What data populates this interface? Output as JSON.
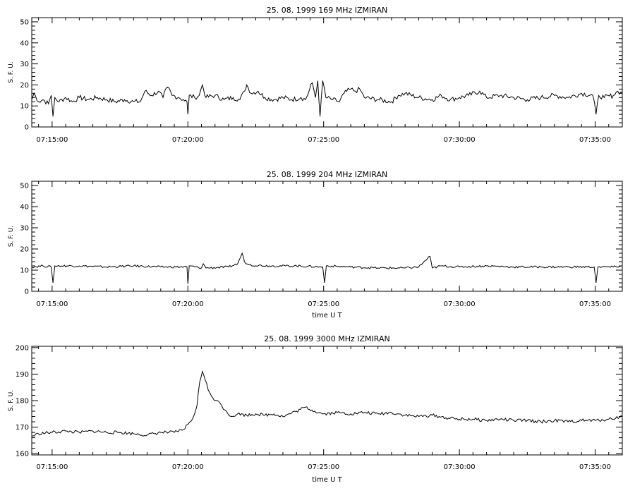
{
  "chart_data": [
    {
      "type": "line",
      "title": "25.  08.  1999    169 MHz    IZMIRAN",
      "ylabel": "S. F. U.",
      "xlabel": "",
      "x_ticks": [
        "07:15:00",
        "07:20:00",
        "07:25:00",
        "07:30:00",
        "07:35:00"
      ],
      "xlim": [
        "07:14:15",
        "07:36:00"
      ],
      "y_ticks": [
        "0",
        "10",
        "20",
        "30",
        "40",
        "50"
      ],
      "ylim": [
        0,
        52
      ],
      "series": [
        {
          "points": [
            [
              "07:14:15",
              13
            ],
            [
              "07:14:20",
              16
            ],
            [
              "07:14:30",
              12
            ],
            [
              "07:14:40",
              13
            ],
            [
              "07:14:52",
              11
            ],
            [
              "07:14:58",
              15
            ],
            [
              "07:15:02",
              5
            ],
            [
              "07:15:06",
              14
            ],
            [
              "07:15:15",
              12
            ],
            [
              "07:15:30",
              14
            ],
            [
              "07:15:45",
              12
            ],
            [
              "07:16:00",
              14
            ],
            [
              "07:16:20",
              13
            ],
            [
              "07:16:40",
              14
            ],
            [
              "07:17:00",
              13
            ],
            [
              "07:17:20",
              12
            ],
            [
              "07:17:40",
              13
            ],
            [
              "07:18:00",
              12
            ],
            [
              "07:18:15",
              12
            ],
            [
              "07:18:25",
              17
            ],
            [
              "07:18:40",
              15
            ],
            [
              "07:18:55",
              17
            ],
            [
              "07:19:05",
              14
            ],
            [
              "07:19:15",
              19
            ],
            [
              "07:19:25",
              15
            ],
            [
              "07:19:40",
              14
            ],
            [
              "07:19:50",
              13
            ],
            [
              "07:19:58",
              12
            ],
            [
              "07:20:00",
              6
            ],
            [
              "07:20:03",
              15
            ],
            [
              "07:20:15",
              14
            ],
            [
              "07:20:25",
              15
            ],
            [
              "07:20:32",
              20
            ],
            [
              "07:20:40",
              14
            ],
            [
              "07:21:00",
              15
            ],
            [
              "07:21:20",
              13
            ],
            [
              "07:21:40",
              14
            ],
            [
              "07:21:55",
              13
            ],
            [
              "07:22:05",
              17
            ],
            [
              "07:22:10",
              20
            ],
            [
              "07:22:20",
              16
            ],
            [
              "07:22:35",
              17
            ],
            [
              "07:22:50",
              14
            ],
            [
              "07:23:10",
              13
            ],
            [
              "07:23:30",
              14
            ],
            [
              "07:23:50",
              13
            ],
            [
              "07:24:10",
              14
            ],
            [
              "07:24:20",
              13
            ],
            [
              "07:24:35",
              21
            ],
            [
              "07:24:42",
              14
            ],
            [
              "07:24:47",
              22
            ],
            [
              "07:24:52",
              5
            ],
            [
              "07:24:58",
              22
            ],
            [
              "07:25:05",
              14
            ],
            [
              "07:25:20",
              13
            ],
            [
              "07:25:35",
              12
            ],
            [
              "07:25:45",
              16
            ],
            [
              "07:26:00",
              18
            ],
            [
              "07:26:10",
              17
            ],
            [
              "07:26:20",
              18
            ],
            [
              "07:26:30",
              14
            ],
            [
              "07:27:00",
              13
            ],
            [
              "07:27:30",
              12
            ],
            [
              "07:27:45",
              15
            ],
            [
              "07:28:00",
              16
            ],
            [
              "07:28:30",
              14
            ],
            [
              "07:29:00",
              13
            ],
            [
              "07:29:20",
              15
            ],
            [
              "07:29:40",
              13
            ],
            [
              "07:30:00",
              14
            ],
            [
              "07:30:20",
              15
            ],
            [
              "07:30:45",
              17
            ],
            [
              "07:31:00",
              14
            ],
            [
              "07:31:30",
              15
            ],
            [
              "07:32:00",
              14
            ],
            [
              "07:32:30",
              13
            ],
            [
              "07:33:00",
              14
            ],
            [
              "07:33:30",
              15
            ],
            [
              "07:34:00",
              14
            ],
            [
              "07:34:30",
              16
            ],
            [
              "07:34:55",
              15
            ],
            [
              "07:35:02",
              6
            ],
            [
              "07:35:08",
              15
            ],
            [
              "07:35:20",
              14
            ],
            [
              "07:35:40",
              15
            ],
            [
              "07:35:50",
              17
            ],
            [
              "07:36:00",
              16
            ]
          ]
        }
      ]
    },
    {
      "type": "line",
      "title": "25.  08.  1999    204 MHz    IZMIRAN",
      "ylabel": "S. F. U.",
      "xlabel": "time   U T",
      "x_ticks": [
        "07:15:00",
        "07:20:00",
        "07:25:00",
        "07:30:00",
        "07:35:00"
      ],
      "xlim": [
        "07:14:15",
        "07:36:00"
      ],
      "y_ticks": [
        "0",
        "10",
        "20",
        "30",
        "40",
        "50"
      ],
      "ylim": [
        0,
        52
      ],
      "series": [
        {
          "points": [
            [
              "07:14:15",
              11.5
            ],
            [
              "07:14:40",
              12
            ],
            [
              "07:14:58",
              11.5
            ],
            [
              "07:15:02",
              4
            ],
            [
              "07:15:06",
              12
            ],
            [
              "07:16:00",
              12
            ],
            [
              "07:17:00",
              11.5
            ],
            [
              "07:18:00",
              12
            ],
            [
              "07:19:00",
              11.5
            ],
            [
              "07:19:58",
              11.5
            ],
            [
              "07:20:00",
              3.5
            ],
            [
              "07:20:03",
              12
            ],
            [
              "07:20:30",
              11
            ],
            [
              "07:20:34",
              13
            ],
            [
              "07:20:40",
              11
            ],
            [
              "07:21:30",
              11.5
            ],
            [
              "07:21:50",
              13
            ],
            [
              "07:22:00",
              18
            ],
            [
              "07:22:05",
              14
            ],
            [
              "07:22:15",
              12.5
            ],
            [
              "07:23:00",
              12
            ],
            [
              "07:24:00",
              12
            ],
            [
              "07:24:58",
              11.5
            ],
            [
              "07:25:02",
              4
            ],
            [
              "07:25:06",
              12
            ],
            [
              "07:26:00",
              11.5
            ],
            [
              "07:27:00",
              11
            ],
            [
              "07:28:00",
              11
            ],
            [
              "07:28:30",
              11.5
            ],
            [
              "07:28:55",
              16.5
            ],
            [
              "07:29:00",
              11
            ],
            [
              "07:29:20",
              12
            ],
            [
              "07:30:00",
              11.5
            ],
            [
              "07:31:00",
              12
            ],
            [
              "07:32:00",
              11.5
            ],
            [
              "07:33:00",
              11.5
            ],
            [
              "07:34:00",
              11.5
            ],
            [
              "07:34:58",
              11.5
            ],
            [
              "07:35:02",
              4
            ],
            [
              "07:35:06",
              11.5
            ],
            [
              "07:35:40",
              11.5
            ],
            [
              "07:36:00",
              12
            ]
          ]
        }
      ]
    },
    {
      "type": "line",
      "title": "25.  08.  1999    3000 MHz    IZMIRAN",
      "ylabel": "S. F. U.",
      "xlabel": "time   U T",
      "x_ticks": [
        "07:15:00",
        "07:20:00",
        "07:25:00",
        "07:30:00",
        "07:35:00"
      ],
      "xlim": [
        "07:14:15",
        "07:36:00"
      ],
      "y_ticks": [
        "160",
        "170",
        "180",
        "190",
        "200"
      ],
      "ylim": [
        159.5,
        200.5
      ],
      "series": [
        {
          "points": [
            [
              "07:14:15",
              166.5
            ],
            [
              "07:14:30",
              167.5
            ],
            [
              "07:15:00",
              168
            ],
            [
              "07:15:30",
              168.5
            ],
            [
              "07:16:00",
              168
            ],
            [
              "07:16:30",
              168.5
            ],
            [
              "07:17:00",
              168
            ],
            [
              "07:17:30",
              168
            ],
            [
              "07:18:00",
              167.5
            ],
            [
              "07:18:30",
              167
            ],
            [
              "07:19:00",
              168
            ],
            [
              "07:19:30",
              168
            ],
            [
              "07:19:50",
              169
            ],
            [
              "07:20:00",
              171
            ],
            [
              "07:20:10",
              173
            ],
            [
              "07:20:20",
              178
            ],
            [
              "07:20:26",
              187
            ],
            [
              "07:20:32",
              191
            ],
            [
              "07:20:38",
              188
            ],
            [
              "07:20:45",
              184
            ],
            [
              "07:20:55",
              181
            ],
            [
              "07:21:05",
              180
            ],
            [
              "07:21:15",
              178
            ],
            [
              "07:21:25",
              176
            ],
            [
              "07:21:35",
              174
            ],
            [
              "07:21:50",
              175
            ],
            [
              "07:22:10",
              174.5
            ],
            [
              "07:22:30",
              175
            ],
            [
              "07:22:50",
              174.5
            ],
            [
              "07:23:10",
              175
            ],
            [
              "07:23:30",
              174
            ],
            [
              "07:24:00",
              176
            ],
            [
              "07:24:20",
              177.5
            ],
            [
              "07:24:40",
              176
            ],
            [
              "07:25:00",
              175
            ],
            [
              "07:25:30",
              175.5
            ],
            [
              "07:26:00",
              175
            ],
            [
              "07:26:30",
              175.5
            ],
            [
              "07:27:00",
              175
            ],
            [
              "07:27:30",
              175.5
            ],
            [
              "07:28:00",
              174.5
            ],
            [
              "07:28:30",
              174
            ],
            [
              "07:29:00",
              174.5
            ],
            [
              "07:29:30",
              173.5
            ],
            [
              "07:30:00",
              173
            ],
            [
              "07:30:30",
              173
            ],
            [
              "07:31:00",
              172.5
            ],
            [
              "07:31:30",
              173
            ],
            [
              "07:32:00",
              172.5
            ],
            [
              "07:32:30",
              172.5
            ],
            [
              "07:33:00",
              172
            ],
            [
              "07:33:30",
              172.5
            ],
            [
              "07:34:00",
              172
            ],
            [
              "07:34:30",
              172.5
            ],
            [
              "07:35:00",
              172.5
            ],
            [
              "07:35:30",
              173
            ],
            [
              "07:36:00",
              174
            ]
          ]
        }
      ]
    }
  ]
}
